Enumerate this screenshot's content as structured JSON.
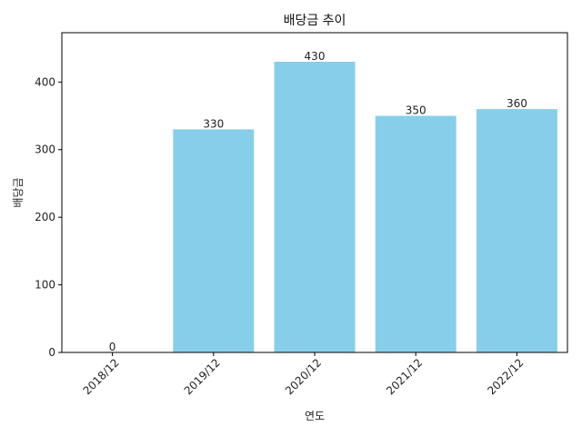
{
  "chart_data": {
    "type": "bar",
    "title": "배당금 추이",
    "xlabel": "연도",
    "ylabel": "배당금",
    "categories": [
      "2018/12",
      "2019/12",
      "2020/12",
      "2021/12",
      "2022/12"
    ],
    "values": [
      0,
      330,
      430,
      350,
      360
    ],
    "value_labels": [
      "0",
      "330",
      "430",
      "350",
      "360"
    ],
    "ylim": [
      0,
      473
    ],
    "yticks": [
      0,
      100,
      200,
      300,
      400
    ],
    "ytick_labels": [
      "0",
      "100",
      "200",
      "300",
      "400"
    ],
    "bar_color": "#87ceeb",
    "grid": false,
    "xtick_rotation": "45 degrees"
  }
}
